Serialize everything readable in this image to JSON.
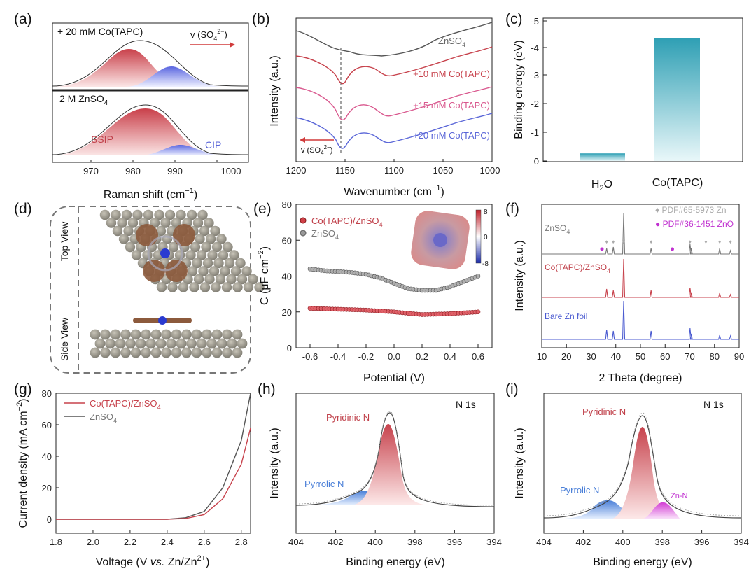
{
  "figure": {
    "a": {
      "panel_label": "(a)",
      "top_label": "+ 20 mM Co(TAPC)",
      "arrow_label": "v (SO",
      "arrow_label_sub": "4",
      "arrow_label_sup": "2−",
      "arrow_label_end": ")",
      "bottom_label": "2 M ZnSO",
      "bottom_label_sub": "4",
      "ssip": "SSIP",
      "cip": "CIP",
      "ticks": [
        "970",
        "980",
        "990",
        "1000"
      ],
      "xlabel": "Raman shift (cm",
      "xlabel_sup": "−1",
      "xlabel_end": ")"
    },
    "b": {
      "panel_label": "(b)",
      "ylabel": "Intensity (a.u.)",
      "xlabel": "Wavenumber (cm",
      "xlabel_sup": "−1",
      "xlabel_end": ")",
      "ticks": [
        "1200",
        "1150",
        "1100",
        "1050",
        "1000"
      ],
      "arrow_label": "v (SO",
      "arrow_label_sub": "4",
      "arrow_label_sup": "2−",
      "arrow_label_end": ")",
      "curve_labels": [
        "ZnSO",
        "+10 mM Co(TAPC)",
        "+15 mM Co(TAPC)",
        "+20 mM Co(TAPC)"
      ],
      "curve_label_sub": "4"
    },
    "c": {
      "panel_label": "(c)",
      "ylabel": "Binding energy (eV)",
      "ticks": [
        "-5",
        "-4",
        "-3",
        "-2",
        "-1",
        "0"
      ],
      "categories_h2o": "H",
      "categories_h2o_sub": "2",
      "categories_h2o_end": "O",
      "categories_co": "Co(TAPC)"
    },
    "d": {
      "panel_label": "(d)",
      "top_view": "Top View",
      "side_view": "Side View"
    },
    "e": {
      "panel_label": "(e)",
      "legend1": "Co(TAPC)/ZnSO",
      "legend1_sub": "4",
      "legend2": "ZnSO",
      "legend2_sub": "4",
      "ylabel": "C (μF cm",
      "ylabel_sup": "−2",
      "ylabel_end": ")",
      "xlabel": "Potential (V)",
      "yticks": [
        "0",
        "20",
        "40",
        "60",
        "80"
      ],
      "xticks": [
        "-0.6",
        "-0.4",
        "-0.2",
        "0.0",
        "0.2",
        "0.4",
        "0.6"
      ],
      "scale_top": "8",
      "scale_mid": "0",
      "scale_bot": "-8"
    },
    "f": {
      "panel_label": "(f)",
      "legend1": "PDF#65-5973 Zn",
      "legend2": "PDF#36-1451 ZnO",
      "labels": [
        "ZnSO",
        "Co(TAPC)/ZnSO",
        "Bare Zn foil"
      ],
      "label_sub": "4",
      "ylabel": "Intensity (a.u.)",
      "xlabel": "2 Theta (degree)",
      "xticks": [
        "10",
        "20",
        "30",
        "40",
        "50",
        "60",
        "70",
        "80",
        "90"
      ]
    },
    "g": {
      "panel_label": "(g)",
      "legend1": "Co(TAPC)/ZnSO",
      "legend1_sub": "4",
      "legend2": "ZnSO",
      "legend2_sub": "4",
      "ylabel": "Current density (mA cm",
      "ylabel_sup": "−2",
      "ylabel_end": ")",
      "xlabel_pre": "Voltage (V ",
      "xlabel_vs": "vs.",
      "xlabel_post": " Zn/Zn",
      "xlabel_sup": "2+",
      "xlabel_end": ")",
      "yticks": [
        "0",
        "20",
        "40",
        "60",
        "80"
      ],
      "xticks": [
        "1.8",
        "2.0",
        "2.2",
        "2.4",
        "2.6",
        "2.8"
      ]
    },
    "h": {
      "panel_label": "(h)",
      "title": "N 1s",
      "pyridinic": "Pyridinic N",
      "pyrrolic": "Pyrrolic N",
      "ylabel": "Intensity (a.u.)",
      "xlabel": "Binding energy (eV)",
      "xticks": [
        "404",
        "402",
        "400",
        "398",
        "396",
        "394"
      ]
    },
    "i": {
      "panel_label": "(i)",
      "title": "N 1s",
      "pyridinic": "Pyridinic N",
      "pyrrolic": "Pyrrolic N",
      "znn": "Zn-N",
      "ylabel": "Intensity (a.u.)",
      "xlabel": "Binding energy (eV)",
      "xticks": [
        "404",
        "402",
        "400",
        "398",
        "396",
        "394"
      ]
    }
  },
  "chart_data": [
    {
      "panel": "c",
      "type": "bar",
      "categories": [
        "H2O",
        "Co(TAPC)"
      ],
      "values": [
        -0.27,
        -4.4
      ],
      "ylabel": "Binding energy (eV)",
      "ylim": [
        0,
        -5
      ]
    },
    {
      "panel": "e",
      "type": "scatter",
      "xlabel": "Potential (V)",
      "ylabel": "C (μF cm−2)",
      "xlim": [
        -0.7,
        0.7
      ],
      "ylim": [
        0,
        80
      ],
      "series": [
        {
          "name": "ZnSO4",
          "x": [
            -0.6,
            -0.5,
            -0.4,
            -0.3,
            -0.2,
            -0.1,
            0.0,
            0.1,
            0.2,
            0.3,
            0.4,
            0.5,
            0.6
          ],
          "y": [
            44,
            43,
            42.5,
            42,
            41,
            39,
            36,
            33,
            32,
            32,
            34,
            37,
            40
          ]
        },
        {
          "name": "Co(TAPC)/ZnSO4",
          "x": [
            -0.6,
            -0.4,
            -0.2,
            0.0,
            0.2,
            0.4,
            0.6
          ],
          "y": [
            22,
            21.5,
            21,
            20,
            18.5,
            19,
            20
          ]
        }
      ]
    },
    {
      "panel": "g",
      "type": "line",
      "xlabel": "Voltage (V vs. Zn/Zn2+)",
      "ylabel": "Current density (mA cm−2)",
      "xlim": [
        1.8,
        2.85
      ],
      "ylim": [
        0,
        80
      ],
      "series": [
        {
          "name": "ZnSO4",
          "x": [
            1.8,
            2.4,
            2.5,
            2.6,
            2.7,
            2.8,
            2.85
          ],
          "y": [
            0,
            0,
            1,
            5,
            20,
            50,
            80
          ]
        },
        {
          "name": "Co(TAPC)/ZnSO4",
          "x": [
            1.8,
            2.4,
            2.5,
            2.6,
            2.7,
            2.8,
            2.85
          ],
          "y": [
            0,
            0,
            0.5,
            3,
            13,
            35,
            58
          ]
        }
      ]
    },
    {
      "panel": "h",
      "type": "area",
      "xlabel": "Binding energy (eV)",
      "xlim": [
        404,
        394
      ],
      "series": [
        {
          "name": "Pyridinic N",
          "center": 399.2
        },
        {
          "name": "Pyrrolic N",
          "center": 400.3
        }
      ]
    },
    {
      "panel": "i",
      "type": "area",
      "xlabel": "Binding energy (eV)",
      "xlim": [
        404,
        394
      ],
      "series": [
        {
          "name": "Pyridinic N",
          "center": 399.0
        },
        {
          "name": "Pyrrolic N",
          "center": 400.5
        },
        {
          "name": "Zn-N",
          "center": 398.0
        }
      ]
    }
  ]
}
